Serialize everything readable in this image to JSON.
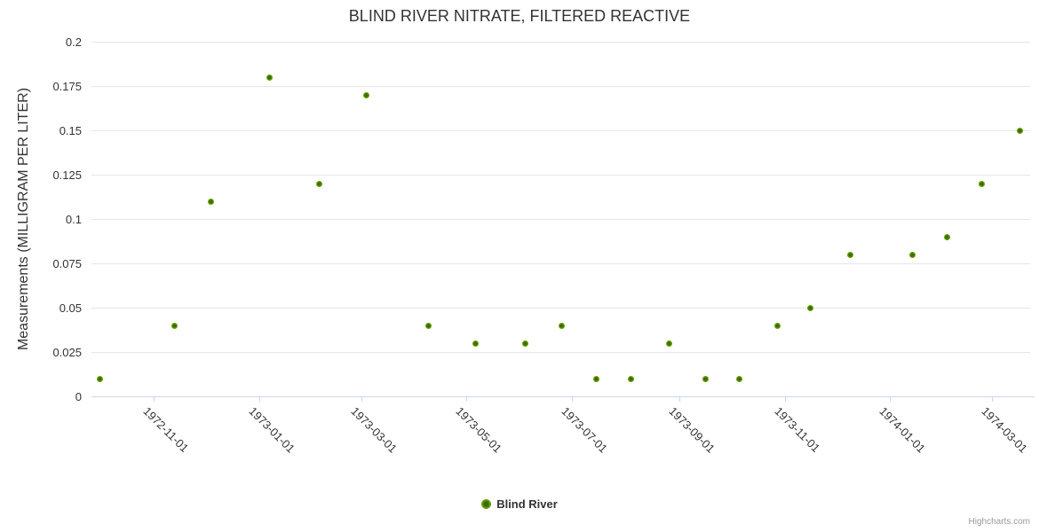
{
  "title": "BLIND RIVER NITRATE, FILTERED REACTIVE",
  "legend": {
    "label": "Blind River"
  },
  "credits": "Highcharts.com",
  "y_axis": {
    "title": "Measurements (MILLIGRAM PER LITER)"
  },
  "chart_data": {
    "type": "scatter",
    "title": "BLIND RIVER NITRATE, FILTERED REACTIVE",
    "xlabel": "",
    "ylabel": "Measurements (MILLIGRAM PER LITER)",
    "ylim": [
      0,
      0.2
    ],
    "y_ticks": [
      0,
      0.025,
      0.05,
      0.075,
      0.1,
      0.125,
      0.15,
      0.175,
      0.2
    ],
    "xlim": [
      "1972-09-26",
      "1974-03-23"
    ],
    "x_ticks": [
      "1972-11-01",
      "1973-01-01",
      "1973-03-01",
      "1973-05-01",
      "1973-07-01",
      "1973-09-01",
      "1973-11-01",
      "1974-01-01",
      "1974-03-01"
    ],
    "grid": true,
    "legend_position": "bottom",
    "series": [
      {
        "name": "Blind River",
        "color": "#69a306",
        "color_center": "#3f6c02",
        "color_rim": "#7fb60f",
        "points": [
          {
            "x": "1972-10-01",
            "y": 0.01
          },
          {
            "x": "1972-11-13",
            "y": 0.04
          },
          {
            "x": "1972-12-04",
            "y": 0.11
          },
          {
            "x": "1973-01-07",
            "y": 0.18
          },
          {
            "x": "1973-02-05",
            "y": 0.12
          },
          {
            "x": "1973-03-04",
            "y": 0.17
          },
          {
            "x": "1973-04-09",
            "y": 0.04
          },
          {
            "x": "1973-05-06",
            "y": 0.03
          },
          {
            "x": "1973-06-04",
            "y": 0.03
          },
          {
            "x": "1973-06-25",
            "y": 0.04
          },
          {
            "x": "1973-07-15",
            "y": 0.01
          },
          {
            "x": "1973-08-04",
            "y": 0.01
          },
          {
            "x": "1973-08-26",
            "y": 0.03
          },
          {
            "x": "1973-09-16",
            "y": 0.01
          },
          {
            "x": "1973-10-06",
            "y": 0.01
          },
          {
            "x": "1973-10-28",
            "y": 0.04
          },
          {
            "x": "1973-11-16",
            "y": 0.05
          },
          {
            "x": "1973-12-09",
            "y": 0.08
          },
          {
            "x": "1974-01-14",
            "y": 0.08
          },
          {
            "x": "1974-02-03",
            "y": 0.09
          },
          {
            "x": "1974-02-23",
            "y": 0.12
          },
          {
            "x": "1974-03-17",
            "y": 0.15
          }
        ]
      }
    ]
  }
}
